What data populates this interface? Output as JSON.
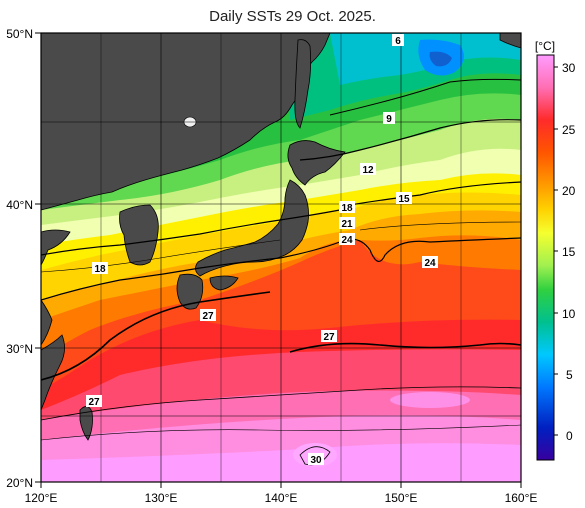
{
  "title": "Daily SSTs 29 Oct. 2025.",
  "map": {
    "lon_ticks": [
      "120°E",
      "130°E",
      "140°E",
      "150°E",
      "160°E"
    ],
    "lat_ticks": [
      "50°N",
      "40°N",
      "30°N",
      "20°N"
    ],
    "contour_labels": [
      "6",
      "9",
      "12",
      "15",
      "18",
      "21",
      "24",
      "18",
      "24",
      "27",
      "27",
      "27",
      "30"
    ]
  },
  "colorbar": {
    "unit": "[°C]",
    "ticks": [
      "30",
      "25",
      "20",
      "15",
      "10",
      "5",
      "0"
    ],
    "colors": [
      "#ff9cff",
      "#ff6fb4",
      "#ff2b2b",
      "#ff6a00",
      "#ffb000",
      "#fff000",
      "#e0ff40",
      "#60e060",
      "#20c000",
      "#00c080",
      "#00c0ff",
      "#0080ff",
      "#0020c0",
      "#3000a0"
    ]
  }
}
